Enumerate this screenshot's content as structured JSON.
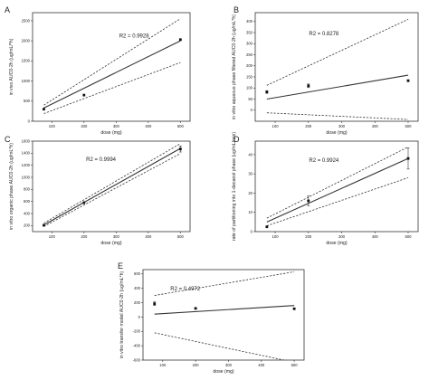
{
  "chart_data": [
    {
      "panel": "A",
      "type": "scatter",
      "xlabel": "dose (mg)",
      "ylabel": "in vivo AUC0-2h (ug/mL/*h)",
      "annotation": "R2 = 0.9928",
      "xlim": [
        40,
        530
      ],
      "xticks": [
        100,
        200,
        300,
        400,
        500
      ],
      "ylim": [
        0,
        2700
      ],
      "yticks": [
        0,
        500,
        1000,
        1500,
        2000,
        2500
      ],
      "points": [
        {
          "x": 75,
          "y": 300
        },
        {
          "x": 200,
          "y": 650
        },
        {
          "x": 500,
          "y": 2030
        }
      ],
      "fit": [
        [
          75,
          330
        ],
        [
          500,
          2000
        ]
      ],
      "ci_upper": [
        [
          75,
          400
        ],
        [
          500,
          2550
        ]
      ],
      "ci_lower": [
        [
          75,
          190
        ],
        [
          500,
          1460
        ]
      ]
    },
    {
      "panel": "B",
      "type": "scatter",
      "xlabel": "dose (mg)",
      "ylabel": "in vitro aqueous phase filtered AUC0-2h (ug/mL*h)",
      "annotation": "R2 = 0.8278",
      "xlim": [
        40,
        530
      ],
      "xticks": [
        100,
        200,
        300,
        400,
        500
      ],
      "ylim": [
        -50,
        440
      ],
      "yticks": [
        0,
        50,
        100,
        150,
        200,
        250,
        300,
        350,
        400
      ],
      "points": [
        {
          "x": 75,
          "y": 82,
          "err": 6
        },
        {
          "x": 200,
          "y": 110,
          "err": 8
        },
        {
          "x": 500,
          "y": 133,
          "err": 4
        }
      ],
      "fit": [
        [
          75,
          50
        ],
        [
          500,
          158
        ]
      ],
      "ci_upper": [
        [
          75,
          112
        ],
        [
          500,
          410
        ]
      ],
      "ci_lower": [
        [
          75,
          -12
        ],
        [
          500,
          -42
        ]
      ]
    },
    {
      "panel": "C",
      "type": "scatter",
      "xlabel": "dose (mg)",
      "ylabel": "in vitro organic phase AUC0-2h (ug/mL*h)",
      "annotation": "R2 = 0.9994",
      "xlim": [
        40,
        530
      ],
      "xticks": [
        100,
        200,
        300,
        400,
        500
      ],
      "ylim": [
        100,
        1600
      ],
      "yticks": [
        200,
        400,
        600,
        800,
        1000,
        1200,
        1400,
        1600
      ],
      "points": [
        {
          "x": 75,
          "y": 205
        },
        {
          "x": 200,
          "y": 580
        },
        {
          "x": 500,
          "y": 1470,
          "err": 50
        }
      ],
      "fit": [
        [
          75,
          210
        ],
        [
          500,
          1480
        ]
      ],
      "ci_upper": [
        [
          75,
          240
        ],
        [
          500,
          1560
        ]
      ],
      "ci_lower": [
        [
          75,
          185
        ],
        [
          500,
          1395
        ]
      ]
    },
    {
      "panel": "D",
      "type": "scatter",
      "xlabel": "dose (mg)",
      "ylabel": "rate of partitioning into 1-decanol phase (ug/mL/min)",
      "annotation": "R2 = 0.9924",
      "xlim": [
        40,
        530
      ],
      "xticks": [
        100,
        200,
        300,
        400,
        500
      ],
      "ylim": [
        0,
        47
      ],
      "yticks": [
        0,
        10,
        20,
        30,
        40
      ],
      "points": [
        {
          "x": 75,
          "y": 2.5
        },
        {
          "x": 200,
          "y": 16,
          "err": 2.5
        },
        {
          "x": 500,
          "y": 38,
          "err": 5.5
        }
      ],
      "fit": [
        [
          75,
          5
        ],
        [
          500,
          38
        ]
      ],
      "ci_upper": [
        [
          75,
          7
        ],
        [
          500,
          44
        ]
      ],
      "ci_lower": [
        [
          75,
          3
        ],
        [
          500,
          28
        ]
      ]
    },
    {
      "panel": "E",
      "type": "scatter",
      "xlabel": "dose (mg)",
      "ylabel": "in vitro transfer model AUC0-2h (ug/mL*h)",
      "annotation": "R2 = 0.4972",
      "xlim": [
        40,
        530
      ],
      "xticks": [
        100,
        200,
        300,
        400,
        500
      ],
      "ylim": [
        -600,
        660
      ],
      "yticks": [
        -600,
        -400,
        -200,
        0,
        200,
        400,
        600
      ],
      "points": [
        {
          "x": 75,
          "y": 185,
          "err": 25
        },
        {
          "x": 200,
          "y": 120,
          "err": 10
        },
        {
          "x": 500,
          "y": 115,
          "err": 10
        }
      ],
      "fit": [
        [
          75,
          40
        ],
        [
          500,
          160
        ]
      ],
      "ci_upper": [
        [
          75,
          300
        ],
        [
          500,
          630
        ]
      ],
      "ci_lower": [
        [
          75,
          -220
        ],
        [
          500,
          -630
        ]
      ]
    }
  ]
}
